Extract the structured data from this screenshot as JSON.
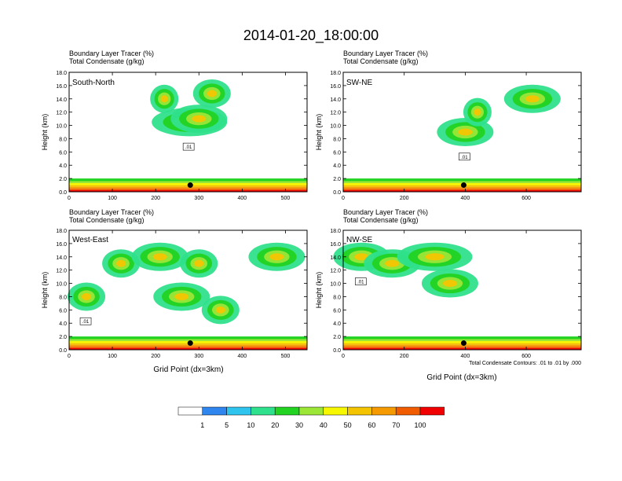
{
  "title": "2014-01-20_18:00:00",
  "panel_header_line1": "Boundary Layer Tracer   (%)",
  "panel_header_line2": "Total Condensate   (g/kg)",
  "y_axis_label": "Height (km)",
  "x_axis_label": "Grid Point (dx=3km)",
  "contour_note": "Total Condensate Contours: .01 to .01 by .000",
  "contour_label": ".01",
  "colorbar": {
    "colors": [
      "#ffffff",
      "#2f86ee",
      "#2ec4ee",
      "#2fe08c",
      "#22d322",
      "#9ce638",
      "#f7f700",
      "#f5c400",
      "#f59a00",
      "#f25c00",
      "#f00000"
    ],
    "labels": [
      "1",
      "5",
      "10",
      "20",
      "30",
      "40",
      "50",
      "60",
      "70",
      "100"
    ]
  },
  "chart_data": [
    {
      "type": "heatmap",
      "panel": "South-North",
      "title": "South-North",
      "xlabel": "",
      "ylabel": "Height (km)",
      "xlim": [
        0,
        550
      ],
      "ylim": [
        0,
        18
      ],
      "xticks": [
        0,
        100,
        200,
        300,
        400,
        500
      ],
      "yticks": [
        "0.0",
        "2.0",
        "4.0",
        "6.0",
        "8.0",
        "10.0",
        "12.0",
        "14.0",
        "16.0",
        "18.0"
      ],
      "marker_x": 280,
      "plumes": [
        [
          278,
          10.5,
          4
        ],
        [
          300,
          11,
          3
        ],
        [
          330,
          14.8,
          2
        ],
        [
          220,
          14,
          1.5
        ]
      ]
    },
    {
      "type": "heatmap",
      "panel": "SW-NE",
      "title": "SW-NE",
      "xlabel": "",
      "ylabel": "Height (km)",
      "xlim": [
        0,
        780
      ],
      "ylim": [
        0,
        18
      ],
      "xticks": [
        0,
        200,
        400,
        600
      ],
      "yticks": [
        "0.0",
        "2.0",
        "4.0",
        "6.0",
        "8.0",
        "10.0",
        "12.0",
        "14.0",
        "16.0",
        "18.0"
      ],
      "marker_x": 395,
      "plumes": [
        [
          400,
          9,
          3
        ],
        [
          440,
          12,
          1.5
        ],
        [
          620,
          14,
          3
        ]
      ]
    },
    {
      "type": "heatmap",
      "panel": "West-East",
      "title": "West-East",
      "xlabel": "Grid Point (dx=3km)",
      "ylabel": "Height (km)",
      "xlim": [
        0,
        550
      ],
      "ylim": [
        0,
        18
      ],
      "xticks": [
        0,
        100,
        200,
        300,
        400,
        500
      ],
      "yticks": [
        "0.0",
        "2.0",
        "4.0",
        "6.0",
        "8.0",
        "10.0",
        "12.0",
        "14.0",
        "16.0",
        "18.0"
      ],
      "marker_x": 280,
      "plumes": [
        [
          40,
          8,
          2
        ],
        [
          120,
          13,
          2
        ],
        [
          210,
          14,
          3
        ],
        [
          260,
          8,
          3
        ],
        [
          300,
          13,
          2
        ],
        [
          350,
          6,
          2
        ],
        [
          480,
          14,
          3
        ]
      ]
    },
    {
      "type": "heatmap",
      "panel": "NW-SE",
      "title": "NW-SE",
      "xlabel": "Grid Point (dx=3km)",
      "ylabel": "Height (km)",
      "xlim": [
        0,
        780
      ],
      "ylim": [
        0,
        18
      ],
      "xticks": [
        0,
        200,
        400,
        600
      ],
      "yticks": [
        "0.0",
        "2.0",
        "4.0",
        "6.0",
        "8.0",
        "10.0",
        "12.0",
        "14.0",
        "16.0",
        "18.0"
      ],
      "marker_x": 395,
      "plumes": [
        [
          60,
          14,
          3
        ],
        [
          160,
          13,
          3
        ],
        [
          300,
          14,
          4
        ],
        [
          350,
          10,
          3
        ]
      ]
    }
  ]
}
